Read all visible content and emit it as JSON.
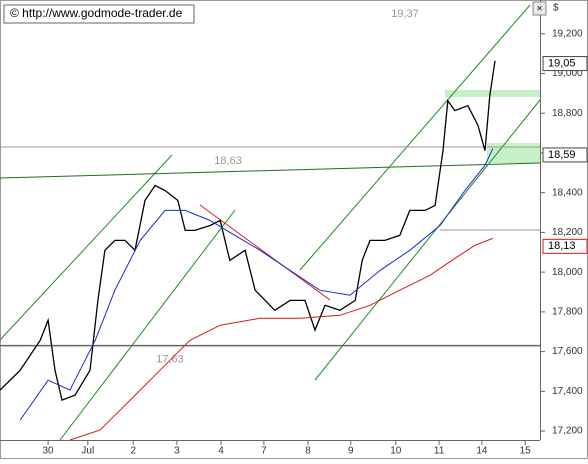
{
  "chart_data": {
    "type": "line",
    "title": "© http://www.godmode-trader.de",
    "unit": "$",
    "xlim": [
      -1.1,
      11.26
    ],
    "ylim": [
      17.155,
      19.37
    ],
    "xticks": [
      {
        "value": 0,
        "label": "30"
      },
      {
        "value": 0.91,
        "label": "Jul"
      },
      {
        "value": 1.95,
        "label": "2"
      },
      {
        "value": 2.95,
        "label": "3"
      },
      {
        "value": 3.96,
        "label": "4"
      },
      {
        "value": 4.94,
        "label": "7"
      },
      {
        "value": 5.95,
        "label": "8"
      },
      {
        "value": 6.93,
        "label": "9"
      },
      {
        "value": 7.96,
        "label": "10"
      },
      {
        "value": 8.95,
        "label": "11"
      },
      {
        "value": 9.93,
        "label": "14"
      },
      {
        "value": 10.92,
        "label": "15"
      }
    ],
    "yticks": [
      {
        "value": 17.2,
        "label": "17,200"
      },
      {
        "value": 17.4,
        "label": "17,400"
      },
      {
        "value": 17.6,
        "label": "17,600"
      },
      {
        "value": 17.8,
        "label": "17,800"
      },
      {
        "value": 18.0,
        "label": "18,000"
      },
      {
        "value": 18.2,
        "label": "18,200"
      },
      {
        "value": 18.4,
        "label": "18,400"
      },
      {
        "value": 18.6,
        "label": "18,600"
      },
      {
        "value": 18.8,
        "label": "18,800"
      },
      {
        "value": 19.0,
        "label": "19,000"
      },
      {
        "value": 19.2,
        "label": "19,200"
      }
    ],
    "series": [
      {
        "color": "#000000",
        "x": [
          -1.1,
          -0.64,
          -0.18,
          0,
          0.16,
          0.32,
          0.62,
          0.96,
          1.14,
          1.3,
          1.53,
          1.76,
          1.99,
          2.22,
          2.45,
          2.68,
          2.97,
          3.14,
          3.36,
          3.71,
          3.94,
          4.16,
          4.51,
          4.74,
          4.97,
          5.19,
          5.54,
          5.88,
          6.11,
          6.34,
          6.68,
          7.03,
          7.19,
          7.37,
          7.71,
          8.05,
          8.28,
          8.63,
          8.86,
          9.04,
          9.15,
          9.31,
          9.61,
          9.84,
          10.0,
          10.11,
          10.23
        ],
        "values": [
          17.406,
          17.506,
          17.657,
          17.758,
          17.506,
          17.356,
          17.381,
          17.506,
          17.858,
          18.11,
          18.16,
          18.16,
          18.11,
          18.361,
          18.436,
          18.411,
          18.361,
          18.21,
          18.21,
          18.235,
          18.26,
          18.059,
          18.11,
          17.909,
          17.858,
          17.808,
          17.858,
          17.858,
          17.708,
          17.833,
          17.808,
          17.858,
          18.059,
          18.16,
          18.16,
          18.185,
          18.311,
          18.311,
          18.336,
          18.612,
          18.863,
          18.813,
          18.838,
          18.738,
          18.612,
          18.888,
          19.064
        ]
      },
      {
        "color": "#1a2ad8",
        "x": [
          -0.64,
          0,
          0.5,
          1.08,
          1.53,
          2.11,
          2.68,
          3.14,
          3.71,
          4.28,
          4.85,
          5.54,
          6.22,
          6.91,
          7.6,
          8.28,
          8.97,
          9.54,
          10.0,
          10.18
        ],
        "values": [
          17.255,
          17.456,
          17.406,
          17.657,
          17.909,
          18.16,
          18.311,
          18.311,
          18.26,
          18.185,
          18.11,
          18.009,
          17.909,
          17.884,
          18.009,
          18.11,
          18.235,
          18.411,
          18.537,
          18.622
        ]
      },
      {
        "color": "#d81818",
        "x": [
          0.5,
          1.19,
          1.88,
          2.56,
          3.25,
          3.94,
          4.85,
          5.77,
          6.68,
          7.37,
          8.05,
          8.74,
          9.31,
          9.77,
          10.18
        ],
        "values": [
          17.155,
          17.205,
          17.356,
          17.506,
          17.657,
          17.733,
          17.768,
          17.768,
          17.783,
          17.833,
          17.909,
          17.984,
          18.069,
          18.135,
          18.17
        ]
      }
    ],
    "levels": [
      {
        "value": 19.37,
        "label": "19,37"
      },
      {
        "value": 18.63,
        "label": "18,63"
      },
      {
        "value": 17.63,
        "label": "17,63"
      }
    ],
    "price_tags": [
      {
        "value": 19.05,
        "label": "19,05"
      },
      {
        "value": 18.59,
        "label": "18,59"
      },
      {
        "value": 18.13,
        "label": "18,13"
      }
    ]
  }
}
